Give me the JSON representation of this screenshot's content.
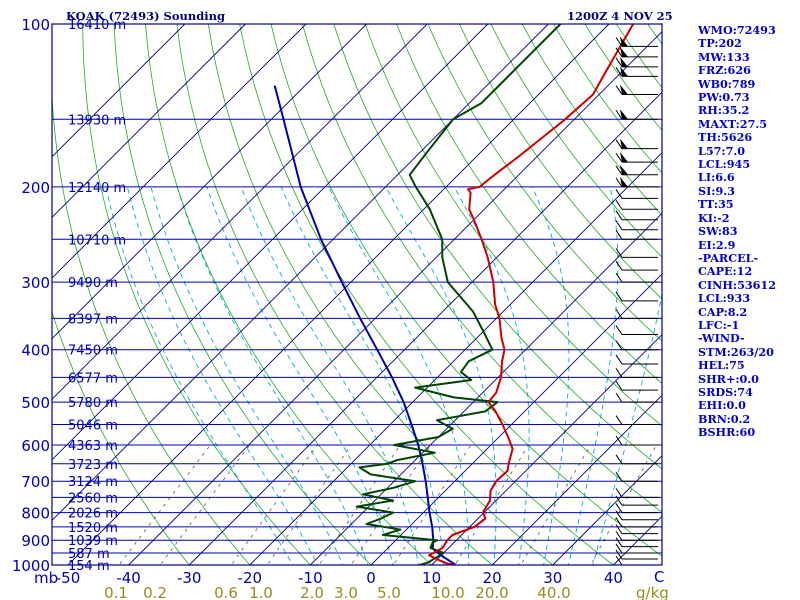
{
  "header": {
    "station": "KOAK (72493) Sounding",
    "time": "1200Z  4 NOV 25"
  },
  "indices": [
    "WMO:72493",
    "TP:202",
    "MW:133",
    "FRZ:626",
    "WB0:789",
    "PW:0.73",
    "RH:35.2",
    "MAXT:27.5",
    "TH:5626",
    "L57:7.0",
    "LCL:945",
    "LI:6.6",
    "SI:9.3",
    "TT:35",
    "KI:-2",
    "SW:83",
    "EI:2.9",
    "-PARCEL-",
    "CAPE:12",
    "CINH:53612",
    "LCL:933",
    "CAP:8.2",
    "LFC:-1",
    "-WIND-",
    "STM:263/20",
    "HEL:75",
    "SHR+:0.0",
    "SRDS:74",
    "EHI:0.0",
    "BRN:0.2",
    "BSHR:60"
  ],
  "colors": {
    "isobar": "#0000b0",
    "isotherm": "#000080",
    "dry_adiabat": "#22aa22",
    "moist_adiabat": "#00aadd",
    "mixing_ratio": "#666666",
    "temperature": "#cc0000",
    "dewpoint": "#004400",
    "parcel": "#0000aa",
    "text": "#0000cc"
  },
  "chart_data": {
    "type": "line",
    "title": "KOAK (72493) Sounding",
    "subtitle": "1200Z  4 NOV 25",
    "xlabel": "",
    "ylabel": "mb",
    "x_unit_label": "C",
    "mixing_unit_label": "g/kg",
    "xlim": [
      -50,
      45
    ],
    "ylim": [
      1000,
      100
    ],
    "pressure_ticks": [
      {
        "p": 100,
        "label": "100"
      },
      {
        "p": 200,
        "label": "200"
      },
      {
        "p": 300,
        "label": "300"
      },
      {
        "p": 400,
        "label": "400"
      },
      {
        "p": 500,
        "label": "500"
      },
      {
        "p": 600,
        "label": "600"
      },
      {
        "p": 700,
        "label": "700"
      },
      {
        "p": 800,
        "label": "800"
      },
      {
        "p": 900,
        "label": "900"
      },
      {
        "p": 1000,
        "label": "1000"
      }
    ],
    "temp_ticks": [
      "-50",
      "-40",
      "-30",
      "-20",
      "-10",
      "0",
      "10",
      "20",
      "30",
      "40"
    ],
    "mixing_ratio_labels": [
      "0.1",
      "0.2",
      "0.6",
      "1.0",
      "2.0",
      "3.0",
      "5.0",
      "10.0",
      "20.0",
      "40.0"
    ],
    "heights": [
      {
        "p": 100,
        "label": "16410 m"
      },
      {
        "p": 150,
        "label": "13930 m"
      },
      {
        "p": 200,
        "label": "12140 m"
      },
      {
        "p": 250,
        "label": "10710 m"
      },
      {
        "p": 300,
        "label": "9490 m"
      },
      {
        "p": 350,
        "label": "8397 m"
      },
      {
        "p": 400,
        "label": "7450 m"
      },
      {
        "p": 450,
        "label": "6577 m"
      },
      {
        "p": 500,
        "label": "5780 m"
      },
      {
        "p": 550,
        "label": "5046 m"
      },
      {
        "p": 600,
        "label": "4363 m"
      },
      {
        "p": 650,
        "label": "3723 m"
      },
      {
        "p": 700,
        "label": "3124 m"
      },
      {
        "p": 750,
        "label": "2560 m"
      },
      {
        "p": 800,
        "label": "2026 m"
      },
      {
        "p": 850,
        "label": "1520 m"
      },
      {
        "p": 900,
        "label": "1039 m"
      },
      {
        "p": 950,
        "label": "587 m"
      },
      {
        "p": 1000,
        "label": "154 m"
      }
    ],
    "series": [
      {
        "key": "temperature",
        "points": [
          [
            1000,
            14.0
          ],
          [
            995,
            12.5
          ],
          [
            980,
            10.5
          ],
          [
            960,
            8.0
          ],
          [
            930,
            9.0
          ],
          [
            900,
            8.5
          ],
          [
            880,
            8.5
          ],
          [
            850,
            10.8
          ],
          [
            820,
            11.2
          ],
          [
            800,
            9.8
          ],
          [
            760,
            9.0
          ],
          [
            730,
            7.5
          ],
          [
            700,
            6.8
          ],
          [
            670,
            7.0
          ],
          [
            650,
            6.0
          ],
          [
            610,
            4.2
          ],
          [
            580,
            1.5
          ],
          [
            550,
            -1.5
          ],
          [
            520,
            -4.8
          ],
          [
            500,
            -7.5
          ],
          [
            480,
            -7.8
          ],
          [
            450,
            -9.5
          ],
          [
            420,
            -12.0
          ],
          [
            400,
            -13.5
          ],
          [
            380,
            -16.0
          ],
          [
            350,
            -19.5
          ],
          [
            330,
            -22.5
          ],
          [
            300,
            -26.5
          ],
          [
            270,
            -31.5
          ],
          [
            250,
            -35.5
          ],
          [
            230,
            -40.0
          ],
          [
            220,
            -42.5
          ],
          [
            205,
            -45.0
          ],
          [
            202,
            -46.0
          ],
          [
            200,
            -44.5
          ],
          [
            190,
            -44.0
          ],
          [
            175,
            -43.0
          ],
          [
            150,
            -41.5
          ],
          [
            135,
            -41.0
          ],
          [
            120,
            -43.0
          ],
          [
            100,
            -46.0
          ]
        ]
      },
      {
        "key": "dewpoint",
        "points": [
          [
            1000,
            8.0
          ],
          [
            990,
            9.0
          ],
          [
            970,
            9.5
          ],
          [
            950,
            10.0
          ],
          [
            930,
            7.0
          ],
          [
            910,
            6.5
          ],
          [
            900,
            6.8
          ],
          [
            880,
            -3.0
          ],
          [
            860,
            -1.0
          ],
          [
            840,
            -7.5
          ],
          [
            820,
            -6.0
          ],
          [
            800,
            -5.0
          ],
          [
            780,
            -12.0
          ],
          [
            760,
            -7.0
          ],
          [
            740,
            -13.0
          ],
          [
            720,
            -9.0
          ],
          [
            700,
            -6.5
          ],
          [
            680,
            -15.0
          ],
          [
            660,
            -18.0
          ],
          [
            650,
            -14.0
          ],
          [
            640,
            -13.0
          ],
          [
            620,
            -8.0
          ],
          [
            600,
            -16.0
          ],
          [
            580,
            -10.0
          ],
          [
            560,
            -9.0
          ],
          [
            540,
            -13.0
          ],
          [
            520,
            -6.5
          ],
          [
            500,
            -6.0
          ],
          [
            490,
            -14.0
          ],
          [
            470,
            -22.0
          ],
          [
            455,
            -14.0
          ],
          [
            440,
            -17.0
          ],
          [
            420,
            -17.5
          ],
          [
            400,
            -15.5
          ],
          [
            370,
            -20.0
          ],
          [
            340,
            -25.0
          ],
          [
            300,
            -34.0
          ],
          [
            270,
            -39.0
          ],
          [
            250,
            -42.0
          ],
          [
            220,
            -49.0
          ],
          [
            200,
            -55.0
          ],
          [
            190,
            -58.0
          ],
          [
            170,
            -59.0
          ],
          [
            150,
            -60.0
          ],
          [
            140,
            -58.0
          ],
          [
            120,
            -58.0
          ],
          [
            100,
            -58.0
          ]
        ]
      },
      {
        "key": "parcel",
        "points": [
          [
            1000,
            14.0
          ],
          [
            960,
            10.0
          ],
          [
            933,
            7.5
          ],
          [
            900,
            6.2
          ],
          [
            850,
            3.8
          ],
          [
            800,
            1.0
          ],
          [
            750,
            -1.8
          ],
          [
            700,
            -4.8
          ],
          [
            650,
            -8.2
          ],
          [
            600,
            -12.0
          ],
          [
            550,
            -16.5
          ],
          [
            500,
            -21.5
          ],
          [
            450,
            -27.5
          ],
          [
            400,
            -34.5
          ],
          [
            350,
            -42.5
          ],
          [
            300,
            -51.5
          ],
          [
            250,
            -62.0
          ],
          [
            200,
            -74.0
          ],
          [
            150,
            -88.0
          ],
          [
            130,
            -95.0
          ]
        ]
      }
    ],
    "winds_levels": [
      1000,
      975,
      950,
      925,
      900,
      875,
      850,
      825,
      800,
      775,
      750,
      700,
      650,
      600,
      550,
      500,
      475,
      450,
      425,
      400,
      375,
      350,
      325,
      300,
      285,
      270,
      250,
      240,
      230,
      220,
      210,
      200,
      190,
      180,
      170,
      150,
      135,
      125,
      120,
      115,
      110,
      100
    ]
  }
}
